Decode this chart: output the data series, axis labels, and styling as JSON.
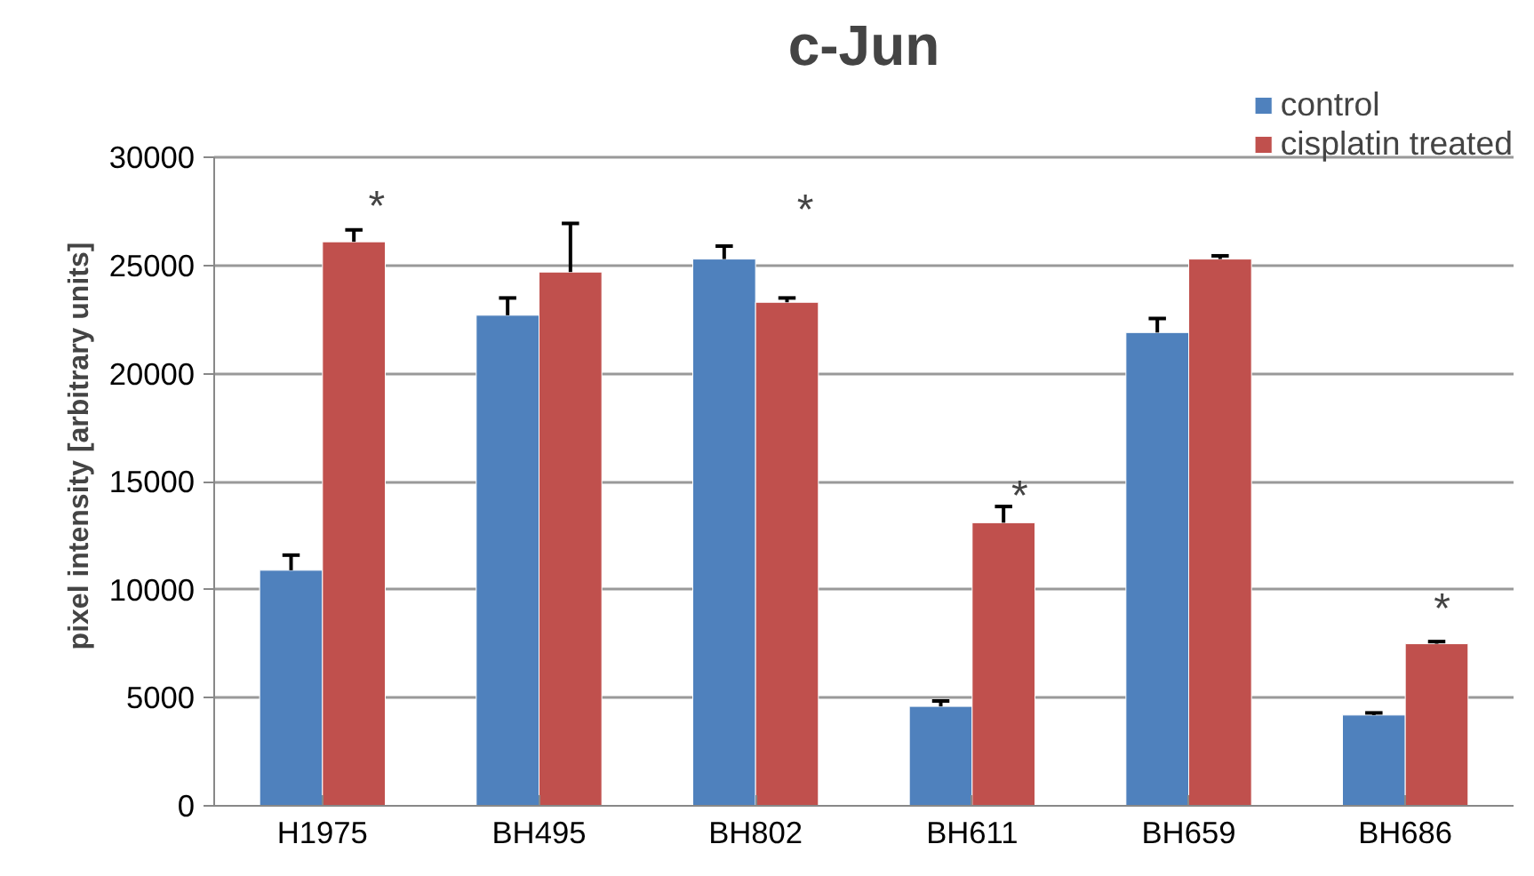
{
  "chart_data": {
    "type": "bar",
    "title": "c-Jun",
    "ylabel": "pixel intensity [arbitrary units]",
    "categories": [
      "H1975",
      "BH495",
      "BH802",
      "BH611",
      "BH659",
      "BH686"
    ],
    "series": [
      {
        "name": "control",
        "color": "#4f81bd",
        "values": [
          10900,
          22700,
          25300,
          4600,
          21900,
          4200
        ],
        "errors": [
          [
            10900,
            11600
          ],
          [
            22700,
            23500
          ],
          [
            25300,
            25900
          ],
          [
            4600,
            4850
          ],
          [
            21900,
            22550
          ],
          [
            4200,
            4300
          ]
        ]
      },
      {
        "name": "cisplatin treated",
        "color": "#c0504d",
        "values": [
          26100,
          24700,
          23300,
          13100,
          25300,
          7500
        ],
        "errors": [
          [
            26100,
            26650
          ],
          [
            24700,
            26950
          ],
          [
            23300,
            23500
          ],
          [
            13100,
            13850
          ],
          [
            25300,
            25450
          ],
          [
            7500,
            7600
          ]
        ]
      }
    ],
    "ylim": [
      0,
      30000
    ],
    "yticks": [
      0,
      5000,
      10000,
      15000,
      20000,
      25000,
      30000
    ],
    "grid": "y",
    "legend": "top right",
    "annotations": [
      "*",
      "*",
      "*",
      "*"
    ]
  }
}
